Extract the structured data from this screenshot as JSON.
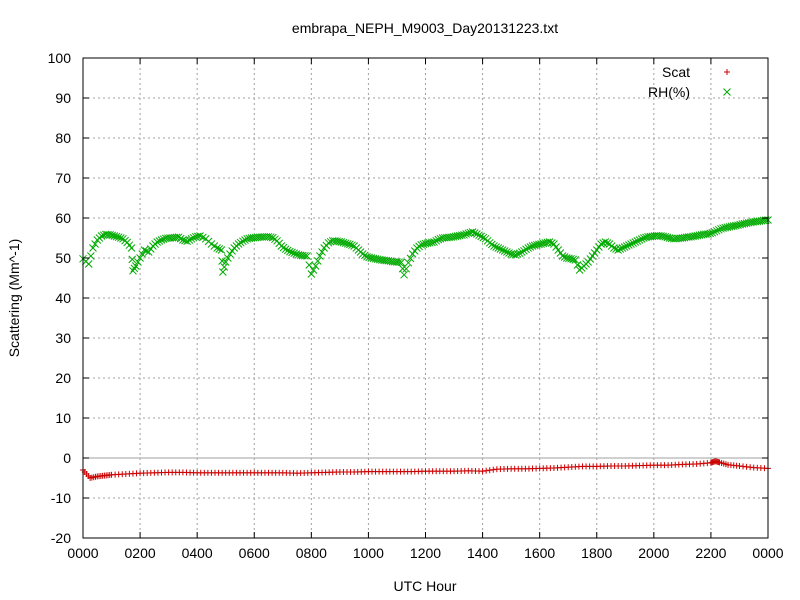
{
  "chart_data": {
    "type": "scatter",
    "title": "embrapa_NEPH_M9003_Day20131223.txt",
    "xlabel": "UTC Hour",
    "ylabel": "Scattering (Mm^-1)",
    "xlim": [
      0,
      24
    ],
    "ylim": [
      -20,
      100
    ],
    "grid": true,
    "legend": "top-right",
    "x_ticks": [
      {
        "value": 0,
        "label": "0000"
      },
      {
        "value": 2,
        "label": "0200"
      },
      {
        "value": 4,
        "label": "0400"
      },
      {
        "value": 6,
        "label": "0600"
      },
      {
        "value": 8,
        "label": "0800"
      },
      {
        "value": 10,
        "label": "1000"
      },
      {
        "value": 12,
        "label": "1200"
      },
      {
        "value": 14,
        "label": "1400"
      },
      {
        "value": 16,
        "label": "1600"
      },
      {
        "value": 18,
        "label": "1800"
      },
      {
        "value": 20,
        "label": "2000"
      },
      {
        "value": 22,
        "label": "2200"
      },
      {
        "value": 24,
        "label": "0000"
      }
    ],
    "y_ticks": [
      -20,
      -10,
      0,
      10,
      20,
      30,
      40,
      50,
      60,
      70,
      80,
      90,
      100
    ],
    "series": [
      {
        "name": "Scat",
        "marker": "plus",
        "color": "#cc0000",
        "points": [
          [
            0.0,
            -3.0
          ],
          [
            0.25,
            -5.0
          ],
          [
            0.5,
            -4.6
          ],
          [
            0.75,
            -4.4
          ],
          [
            1.0,
            -4.2
          ],
          [
            1.5,
            -4.0
          ],
          [
            2.0,
            -3.8
          ],
          [
            2.5,
            -3.7
          ],
          [
            3.0,
            -3.6
          ],
          [
            3.5,
            -3.6
          ],
          [
            4.0,
            -3.7
          ],
          [
            4.5,
            -3.7
          ],
          [
            5.0,
            -3.7
          ],
          [
            5.5,
            -3.7
          ],
          [
            6.0,
            -3.7
          ],
          [
            6.5,
            -3.7
          ],
          [
            7.0,
            -3.7
          ],
          [
            7.5,
            -3.8
          ],
          [
            8.0,
            -3.7
          ],
          [
            8.5,
            -3.6
          ],
          [
            9.0,
            -3.5
          ],
          [
            9.5,
            -3.5
          ],
          [
            10.0,
            -3.4
          ],
          [
            10.5,
            -3.4
          ],
          [
            11.0,
            -3.4
          ],
          [
            11.5,
            -3.4
          ],
          [
            12.0,
            -3.3
          ],
          [
            12.5,
            -3.3
          ],
          [
            13.0,
            -3.3
          ],
          [
            13.5,
            -3.2
          ],
          [
            14.0,
            -3.3
          ],
          [
            14.5,
            -2.8
          ],
          [
            15.0,
            -2.7
          ],
          [
            15.5,
            -2.7
          ],
          [
            16.0,
            -2.6
          ],
          [
            16.5,
            -2.5
          ],
          [
            17.0,
            -2.3
          ],
          [
            17.5,
            -2.1
          ],
          [
            18.0,
            -2.1
          ],
          [
            18.5,
            -2.0
          ],
          [
            19.0,
            -2.0
          ],
          [
            19.5,
            -1.9
          ],
          [
            20.0,
            -1.8
          ],
          [
            20.5,
            -1.8
          ],
          [
            21.0,
            -1.6
          ],
          [
            21.5,
            -1.5
          ],
          [
            22.0,
            -1.2
          ],
          [
            22.15,
            -0.8
          ],
          [
            22.3,
            -1.1
          ],
          [
            22.6,
            -1.7
          ],
          [
            23.0,
            -2.0
          ],
          [
            23.5,
            -2.4
          ],
          [
            24.0,
            -2.6
          ]
        ]
      },
      {
        "name": "RH(%)",
        "marker": "cross",
        "color": "#00aa00",
        "points": [
          [
            0.0,
            49.8
          ],
          [
            0.2,
            48.5
          ],
          [
            0.35,
            52.5
          ],
          [
            0.5,
            54.5
          ],
          [
            0.65,
            55.5
          ],
          [
            0.8,
            55.9
          ],
          [
            0.95,
            55.8
          ],
          [
            1.1,
            55.5
          ],
          [
            1.25,
            55.2
          ],
          [
            1.4,
            54.8
          ],
          [
            1.55,
            53.9
          ],
          [
            1.7,
            52.5
          ],
          [
            1.75,
            46.8
          ],
          [
            1.85,
            48.0
          ],
          [
            2.0,
            50.0
          ],
          [
            2.15,
            52.0
          ],
          [
            2.3,
            51.5
          ],
          [
            2.45,
            53.0
          ],
          [
            2.6,
            54.0
          ],
          [
            2.75,
            54.5
          ],
          [
            2.9,
            54.9
          ],
          [
            3.05,
            55.0
          ],
          [
            3.2,
            55.1
          ],
          [
            3.35,
            55.2
          ],
          [
            3.5,
            54.5
          ],
          [
            3.65,
            54.2
          ],
          [
            3.8,
            54.8
          ],
          [
            3.95,
            55.3
          ],
          [
            4.1,
            55.5
          ],
          [
            4.3,
            54.8
          ],
          [
            4.5,
            53.5
          ],
          [
            4.7,
            52.5
          ],
          [
            4.85,
            52.0
          ],
          [
            4.9,
            46.5
          ],
          [
            5.0,
            49.0
          ],
          [
            5.15,
            51.0
          ],
          [
            5.3,
            52.5
          ],
          [
            5.45,
            53.5
          ],
          [
            5.6,
            54.2
          ],
          [
            5.75,
            54.8
          ],
          [
            5.9,
            55.0
          ],
          [
            6.05,
            55.1
          ],
          [
            6.2,
            55.2
          ],
          [
            6.35,
            55.3
          ],
          [
            6.5,
            55.3
          ],
          [
            6.65,
            55.1
          ],
          [
            6.8,
            54.3
          ],
          [
            6.95,
            53.0
          ],
          [
            7.1,
            52.2
          ],
          [
            7.25,
            51.6
          ],
          [
            7.4,
            51.2
          ],
          [
            7.55,
            50.8
          ],
          [
            7.7,
            50.6
          ],
          [
            7.85,
            50.5
          ],
          [
            8.0,
            46.0
          ],
          [
            8.15,
            48.0
          ],
          [
            8.3,
            50.5
          ],
          [
            8.45,
            52.5
          ],
          [
            8.6,
            53.8
          ],
          [
            8.75,
            54.3
          ],
          [
            8.9,
            54.2
          ],
          [
            9.05,
            54.0
          ],
          [
            9.2,
            53.7
          ],
          [
            9.35,
            53.4
          ],
          [
            9.5,
            53.0
          ],
          [
            9.65,
            52.0
          ],
          [
            9.8,
            51.0
          ],
          [
            9.95,
            50.3
          ],
          [
            10.1,
            50.0
          ],
          [
            10.25,
            49.8
          ],
          [
            10.4,
            49.6
          ],
          [
            10.55,
            49.4
          ],
          [
            10.7,
            49.3
          ],
          [
            10.85,
            49.1
          ],
          [
            11.0,
            49.0
          ],
          [
            11.15,
            48.9
          ],
          [
            11.25,
            45.8
          ],
          [
            11.4,
            48.8
          ],
          [
            11.55,
            51.0
          ],
          [
            11.7,
            52.5
          ],
          [
            11.85,
            53.3
          ],
          [
            12.0,
            53.6
          ],
          [
            12.15,
            53.8
          ],
          [
            12.3,
            54.0
          ],
          [
            12.45,
            54.6
          ],
          [
            12.6,
            55.0
          ],
          [
            12.75,
            55.1
          ],
          [
            12.9,
            55.2
          ],
          [
            13.05,
            55.4
          ],
          [
            13.2,
            55.6
          ],
          [
            13.35,
            55.8
          ],
          [
            13.5,
            56.2
          ],
          [
            13.65,
            56.5
          ],
          [
            13.8,
            56.0
          ],
          [
            13.95,
            55.4
          ],
          [
            14.1,
            54.8
          ],
          [
            14.25,
            53.8
          ],
          [
            14.4,
            53.0
          ],
          [
            14.55,
            52.5
          ],
          [
            14.7,
            52.0
          ],
          [
            14.85,
            51.5
          ],
          [
            15.0,
            51.0
          ],
          [
            15.15,
            50.8
          ],
          [
            15.3,
            51.2
          ],
          [
            15.45,
            51.8
          ],
          [
            15.6,
            52.5
          ],
          [
            15.75,
            53.0
          ],
          [
            15.9,
            53.3
          ],
          [
            16.05,
            53.5
          ],
          [
            16.2,
            53.8
          ],
          [
            16.35,
            54.0
          ],
          [
            16.5,
            53.5
          ],
          [
            16.65,
            52.0
          ],
          [
            16.8,
            50.5
          ],
          [
            16.95,
            50.0
          ],
          [
            17.1,
            49.8
          ],
          [
            17.25,
            49.5
          ],
          [
            17.4,
            47.0
          ],
          [
            17.55,
            48.0
          ],
          [
            17.7,
            49.0
          ],
          [
            17.85,
            50.5
          ],
          [
            18.0,
            52.0
          ],
          [
            18.15,
            53.5
          ],
          [
            18.3,
            54.0
          ],
          [
            18.45,
            53.5
          ],
          [
            18.6,
            52.5
          ],
          [
            18.75,
            52.0
          ],
          [
            18.9,
            52.5
          ],
          [
            19.05,
            53.0
          ],
          [
            19.2,
            53.5
          ],
          [
            19.35,
            54.0
          ],
          [
            19.5,
            54.5
          ],
          [
            19.65,
            55.0
          ],
          [
            19.8,
            55.3
          ],
          [
            19.95,
            55.4
          ],
          [
            20.1,
            55.6
          ],
          [
            20.25,
            55.5
          ],
          [
            20.4,
            55.3
          ],
          [
            20.55,
            55.0
          ],
          [
            20.7,
            54.8
          ],
          [
            20.85,
            54.9
          ],
          [
            21.0,
            55.0
          ],
          [
            21.15,
            55.2
          ],
          [
            21.3,
            55.3
          ],
          [
            21.45,
            55.5
          ],
          [
            21.6,
            55.7
          ],
          [
            21.75,
            55.9
          ],
          [
            21.9,
            56.0
          ],
          [
            22.05,
            56.3
          ],
          [
            22.2,
            56.8
          ],
          [
            22.35,
            57.3
          ],
          [
            22.5,
            57.6
          ],
          [
            22.65,
            57.8
          ],
          [
            22.8,
            58.0
          ],
          [
            22.95,
            58.2
          ],
          [
            23.1,
            58.5
          ],
          [
            23.25,
            58.7
          ],
          [
            23.4,
            58.9
          ],
          [
            23.55,
            59.1
          ],
          [
            23.7,
            59.2
          ],
          [
            23.85,
            59.4
          ],
          [
            24.0,
            59.5
          ]
        ]
      }
    ]
  }
}
